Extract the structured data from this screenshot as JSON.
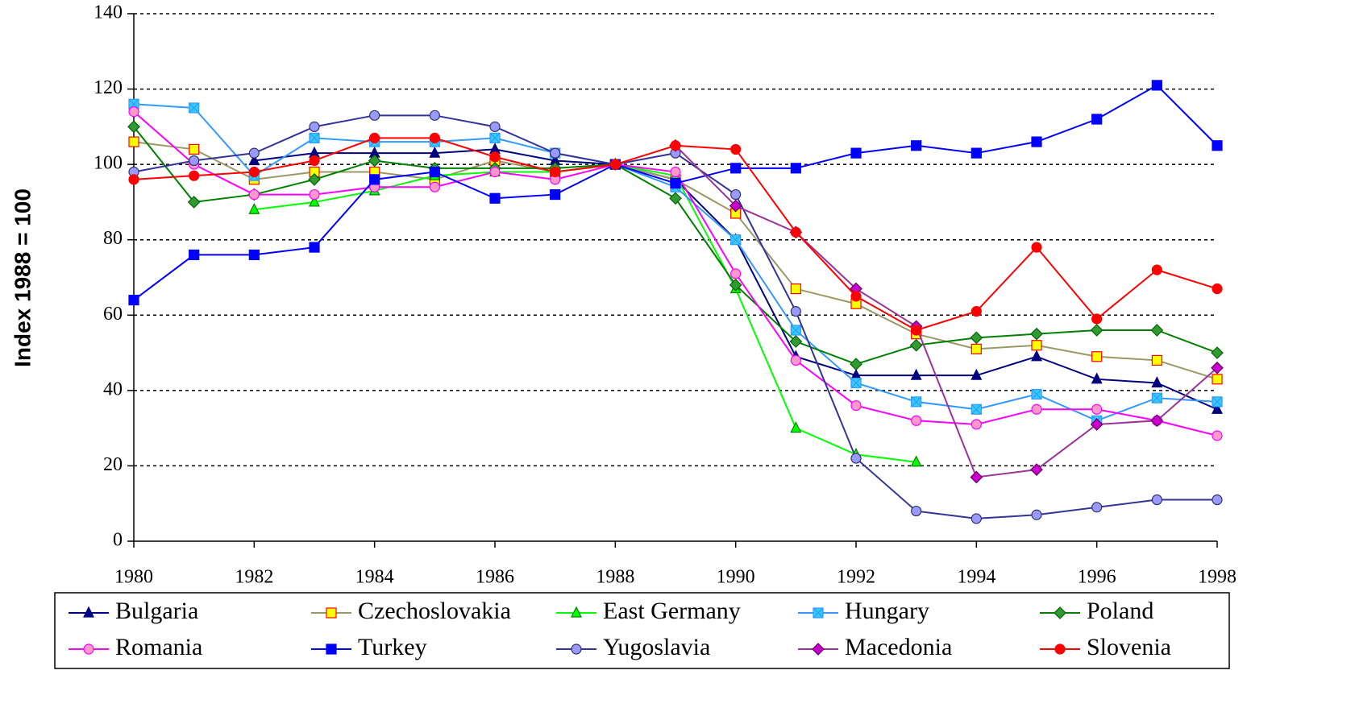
{
  "chart_data": {
    "type": "line",
    "y_label": "Index 1988 = 100",
    "x": [
      1980,
      1981,
      1982,
      1983,
      1984,
      1985,
      1986,
      1987,
      1988,
      1989,
      1990,
      1991,
      1992,
      1993,
      1994,
      1995,
      1996,
      1997,
      1998
    ],
    "xlim": [
      1980,
      1998
    ],
    "xticks": [
      1980,
      1982,
      1984,
      1986,
      1988,
      1990,
      1992,
      1994,
      1996,
      1998
    ],
    "ylim": [
      0,
      140
    ],
    "yticks": [
      0,
      20,
      40,
      60,
      80,
      100,
      120,
      140
    ],
    "grid": true,
    "legend": "bottom",
    "series": [
      {
        "name": "Bulgaria",
        "color": "#000080",
        "marker": "triangle",
        "marker_fill": "#000080",
        "values": [
          null,
          null,
          101,
          103,
          103,
          103,
          104,
          101,
          100,
          96,
          80,
          49,
          44,
          44,
          44,
          49,
          43,
          42,
          35
        ]
      },
      {
        "name": "Czechoslovakia",
        "color": "#999966",
        "marker": "square",
        "marker_fill": "#ffff00",
        "marker_stroke": "#ff0000",
        "values": [
          106,
          104,
          96,
          98,
          98,
          96,
          101,
          98,
          100,
          96,
          87,
          67,
          63,
          55,
          51,
          52,
          49,
          48,
          43
        ]
      },
      {
        "name": "East Germany",
        "color": "#00ff00",
        "marker": "triangle",
        "marker_fill": "#00ff00",
        "marker_stroke": "#008000",
        "values": [
          null,
          null,
          88,
          90,
          93,
          97,
          98,
          98,
          100,
          97,
          67,
          30,
          23,
          21,
          null,
          null,
          null,
          null,
          null
        ]
      },
      {
        "name": "Hungary",
        "color": "#3399ff",
        "marker": "xsquare",
        "marker_fill": "#33ccff",
        "values": [
          116,
          115,
          97,
          107,
          106,
          106,
          107,
          103,
          100,
          94,
          80,
          56,
          42,
          37,
          35,
          39,
          32,
          38,
          37
        ]
      },
      {
        "name": "Poland",
        "color": "#008000",
        "marker": "diamond",
        "marker_fill": "#339933",
        "marker_stroke": "#006600",
        "values": [
          110,
          90,
          92,
          96,
          101,
          99,
          99,
          99,
          100,
          91,
          68,
          53,
          47,
          52,
          54,
          55,
          56,
          56,
          50
        ]
      },
      {
        "name": "Romania",
        "color": "#ff00ff",
        "marker": "circle",
        "marker_fill": "#ff99cc",
        "marker_stroke": "#ff00ff",
        "values": [
          114,
          100,
          92,
          92,
          94,
          94,
          98,
          96,
          100,
          98,
          71,
          48,
          36,
          32,
          31,
          35,
          35,
          32,
          28
        ]
      },
      {
        "name": "Turkey",
        "color": "#0000ff",
        "marker": "square",
        "marker_fill": "#0000ff",
        "values": [
          64,
          76,
          76,
          78,
          96,
          98,
          91,
          92,
          100,
          95,
          99,
          99,
          103,
          105,
          103,
          106,
          112,
          121,
          105
        ]
      },
      {
        "name": "Yugoslavia",
        "color": "#333399",
        "marker": "circle",
        "marker_fill": "#9999ff",
        "marker_stroke": "#333366",
        "values": [
          98,
          101,
          103,
          110,
          113,
          113,
          110,
          103,
          100,
          103,
          92,
          61,
          22,
          8,
          6,
          7,
          9,
          11,
          11
        ]
      },
      {
        "name": "Macedonia",
        "color": "#993399",
        "marker": "diamond",
        "marker_fill": "#cc00cc",
        "marker_stroke": "#660066",
        "values": [
          null,
          null,
          null,
          null,
          null,
          null,
          null,
          null,
          null,
          105,
          89,
          82,
          67,
          57,
          17,
          19,
          31,
          32,
          46
        ]
      },
      {
        "name": "Slovenia",
        "color": "#ff0000",
        "marker": "circle",
        "marker_fill": "#ff0000",
        "values": [
          96,
          97,
          98,
          101,
          107,
          107,
          102,
          98,
          100,
          105,
          104,
          82,
          65,
          56,
          61,
          78,
          59,
          72,
          67
        ]
      }
    ]
  }
}
